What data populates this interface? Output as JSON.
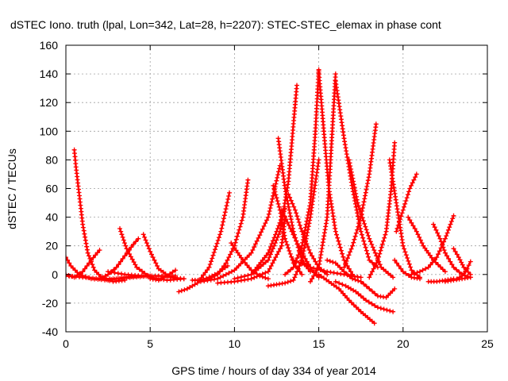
{
  "chart_data": {
    "type": "scatter",
    "title": "dSTEC Iono. truth (lpal, Lon=342, Lat=28, h=2207): STEC-STEC_elemax in phase cont",
    "xlabel": "GPS time / hours of day 334 of year 2014",
    "ylabel": "dSTEC  / TECUs",
    "xlim": [
      0,
      25
    ],
    "ylim": [
      -40,
      160
    ],
    "xticks": [
      "0",
      "5",
      "10",
      "15",
      "20",
      "25"
    ],
    "yticks": [
      "-40",
      "-20",
      "0",
      "20",
      "40",
      "60",
      "80",
      "100",
      "120",
      "140",
      "160"
    ],
    "grid": true,
    "marker": "plus",
    "color": "#ff0000",
    "series": [
      {
        "x": [
          0.5,
          0.6,
          0.8,
          1.0,
          1.3,
          1.7,
          2.2,
          2.8,
          3.5
        ],
        "y": [
          87,
          75,
          55,
          35,
          15,
          3,
          -3,
          -5,
          -4
        ]
      },
      {
        "x": [
          0.0,
          0.3,
          0.8,
          1.5,
          2.5,
          3.5,
          4.5
        ],
        "y": [
          12,
          6,
          0,
          -3,
          -4,
          -2,
          -1
        ]
      },
      {
        "x": [
          0.0,
          0.5,
          1.0,
          1.5,
          2.0
        ],
        "y": [
          0,
          -2,
          2,
          10,
          17
        ]
      },
      {
        "x": [
          0.0,
          1.0,
          2.0,
          3.0,
          4.0,
          5.0
        ],
        "y": [
          -1,
          -2,
          -3,
          -3,
          -2,
          -1
        ]
      },
      {
        "x": [
          2.0,
          2.5,
          3.0,
          3.5,
          4.0,
          4.3
        ],
        "y": [
          -3,
          0,
          5,
          13,
          21,
          25
        ]
      },
      {
        "x": [
          3.2,
          3.6,
          4.2,
          5.0,
          6.0,
          7.0
        ],
        "y": [
          32,
          18,
          5,
          -2,
          -4,
          -3
        ]
      },
      {
        "x": [
          2.5,
          3.5,
          4.5,
          5.5,
          6.5
        ],
        "y": [
          2,
          0,
          -1,
          -1,
          -1
        ]
      },
      {
        "x": [
          4.6,
          5.0,
          5.5,
          6.2,
          7.0
        ],
        "y": [
          28,
          16,
          4,
          -2,
          -3
        ]
      },
      {
        "x": [
          5.0,
          5.5,
          6.0,
          6.5
        ],
        "y": [
          -3,
          -4,
          -1,
          3
        ]
      },
      {
        "x": [
          6.7,
          7.2,
          7.8,
          8.5,
          9.2,
          9.7
        ],
        "y": [
          -12,
          -10,
          -6,
          5,
          30,
          57
        ]
      },
      {
        "x": [
          7.5,
          8.0,
          8.5,
          9.0,
          9.6
        ],
        "y": [
          -4,
          -4,
          -2,
          1,
          6
        ]
      },
      {
        "x": [
          8.5,
          9.0,
          9.5,
          10.0,
          10.5,
          10.8
        ],
        "y": [
          -3,
          0,
          8,
          20,
          40,
          66
        ]
      },
      {
        "x": [
          9.8,
          10.5,
          11.0,
          11.5,
          12.0
        ],
        "y": [
          22,
          10,
          3,
          -1,
          -3
        ]
      },
      {
        "x": [
          8.0,
          9.0,
          10.0,
          11.0,
          12.0,
          12.7
        ],
        "y": [
          -5,
          -3,
          3,
          15,
          40,
          76
        ]
      },
      {
        "x": [
          9.0,
          10.0,
          11.0,
          12.0,
          12.8,
          13.0
        ],
        "y": [
          -6,
          -5,
          -3,
          2,
          20,
          40
        ]
      },
      {
        "x": [
          10.0,
          11.0,
          12.0,
          12.7,
          13.2,
          13.7
        ],
        "y": [
          -3,
          0,
          10,
          30,
          65,
          132
        ]
      },
      {
        "x": [
          12.3,
          12.7,
          13.0,
          13.5,
          14.0
        ],
        "y": [
          62,
          45,
          25,
          8,
          0
        ]
      },
      {
        "x": [
          12.6,
          13.0,
          13.5,
          14.0,
          14.5
        ],
        "y": [
          95,
          60,
          30,
          10,
          2
        ]
      },
      {
        "x": [
          12.0,
          12.5,
          13.0,
          13.5,
          14.0,
          14.5,
          15.0
        ],
        "y": [
          -8,
          -7,
          -6,
          -4,
          10,
          40,
          80
        ]
      },
      {
        "x": [
          11.0,
          12.0,
          12.5,
          13.0
        ],
        "y": [
          0,
          15,
          30,
          46
        ]
      },
      {
        "x": [
          13.2,
          13.6,
          14.0,
          14.5,
          15.0,
          15.5
        ],
        "y": [
          56,
          45,
          30,
          15,
          5,
          0
        ]
      },
      {
        "x": [
          12.8,
          13.4,
          14.0,
          14.6,
          15.0
        ],
        "y": [
          45,
          30,
          15,
          3,
          -2
        ]
      },
      {
        "x": [
          13.0,
          13.5,
          14.0,
          14.5,
          14.8,
          15.0
        ],
        "y": [
          0,
          5,
          20,
          50,
          100,
          143
        ]
      },
      {
        "x": [
          15.0,
          15.3,
          15.6,
          16.0,
          16.5,
          17.0
        ],
        "y": [
          142,
          100,
          60,
          30,
          10,
          0
        ]
      },
      {
        "x": [
          14.5,
          15.0,
          15.5,
          15.8,
          16.0
        ],
        "y": [
          -5,
          5,
          40,
          100,
          140
        ]
      },
      {
        "x": [
          16.0,
          16.5,
          17.0,
          17.5,
          18.0,
          18.5
        ],
        "y": [
          135,
          95,
          60,
          30,
          10,
          5
        ]
      },
      {
        "x": [
          13.5,
          14.5,
          15.5,
          16.5,
          17.5
        ],
        "y": [
          10,
          5,
          2,
          0,
          -2
        ]
      },
      {
        "x": [
          15.0,
          15.6,
          16.2,
          16.8,
          17.5,
          18.3
        ],
        "y": [
          0,
          -5,
          -10,
          -18,
          -26,
          -34
        ]
      },
      {
        "x": [
          16.0,
          16.6,
          17.2,
          17.8,
          18.5,
          19.4
        ],
        "y": [
          -5,
          -8,
          -12,
          -18,
          -23,
          -26
        ]
      },
      {
        "x": [
          16.5,
          17.0,
          17.5,
          18.0,
          18.4
        ],
        "y": [
          5,
          20,
          40,
          70,
          105
        ]
      },
      {
        "x": [
          16.8,
          17.3,
          18.0,
          18.7,
          19.4
        ],
        "y": [
          80,
          50,
          25,
          5,
          -2
        ]
      },
      {
        "x": [
          15.5,
          16.0,
          16.5,
          17.0,
          17.5
        ],
        "y": [
          10,
          8,
          2,
          -3,
          -5
        ]
      },
      {
        "x": [
          17.5,
          18.0,
          18.5,
          19.0,
          19.5
        ],
        "y": [
          -5,
          -10,
          -15,
          -16,
          -10
        ]
      },
      {
        "x": [
          18.0,
          18.5,
          19.0,
          19.3,
          19.5
        ],
        "y": [
          -2,
          10,
          30,
          60,
          92
        ]
      },
      {
        "x": [
          19.2,
          19.6,
          20.0,
          20.5,
          21.0
        ],
        "y": [
          80,
          50,
          20,
          3,
          -2
        ]
      },
      {
        "x": [
          19.6,
          20.0,
          20.4,
          20.8
        ],
        "y": [
          30,
          45,
          60,
          70
        ]
      },
      {
        "x": [
          19.5,
          20.0,
          20.5,
          21.0
        ],
        "y": [
          10,
          2,
          -2,
          -3
        ]
      },
      {
        "x": [
          20.3,
          20.8,
          21.2,
          21.8,
          22.5
        ],
        "y": [
          40,
          30,
          20,
          10,
          2
        ]
      },
      {
        "x": [
          20.5,
          21.0,
          21.5,
          22.0,
          22.5,
          23.0
        ],
        "y": [
          0,
          2,
          5,
          12,
          25,
          41
        ]
      },
      {
        "x": [
          21.5,
          22.0,
          22.5,
          23.0
        ],
        "y": [
          -5,
          -5,
          -4,
          -3
        ]
      },
      {
        "x": [
          21.8,
          22.2,
          22.5,
          23.0,
          23.5,
          24.0
        ],
        "y": [
          35,
          25,
          15,
          5,
          0,
          -2
        ]
      },
      {
        "x": [
          22.5,
          23.0,
          23.5,
          24.0
        ],
        "y": [
          -5,
          -4,
          -3,
          -2
        ]
      },
      {
        "x": [
          23.0,
          23.3,
          23.6,
          24.0
        ],
        "y": [
          18,
          12,
          5,
          0
        ]
      },
      {
        "x": [
          23.2,
          23.5,
          23.8,
          24.0
        ],
        "y": [
          -3,
          -1,
          4,
          9
        ]
      }
    ]
  }
}
